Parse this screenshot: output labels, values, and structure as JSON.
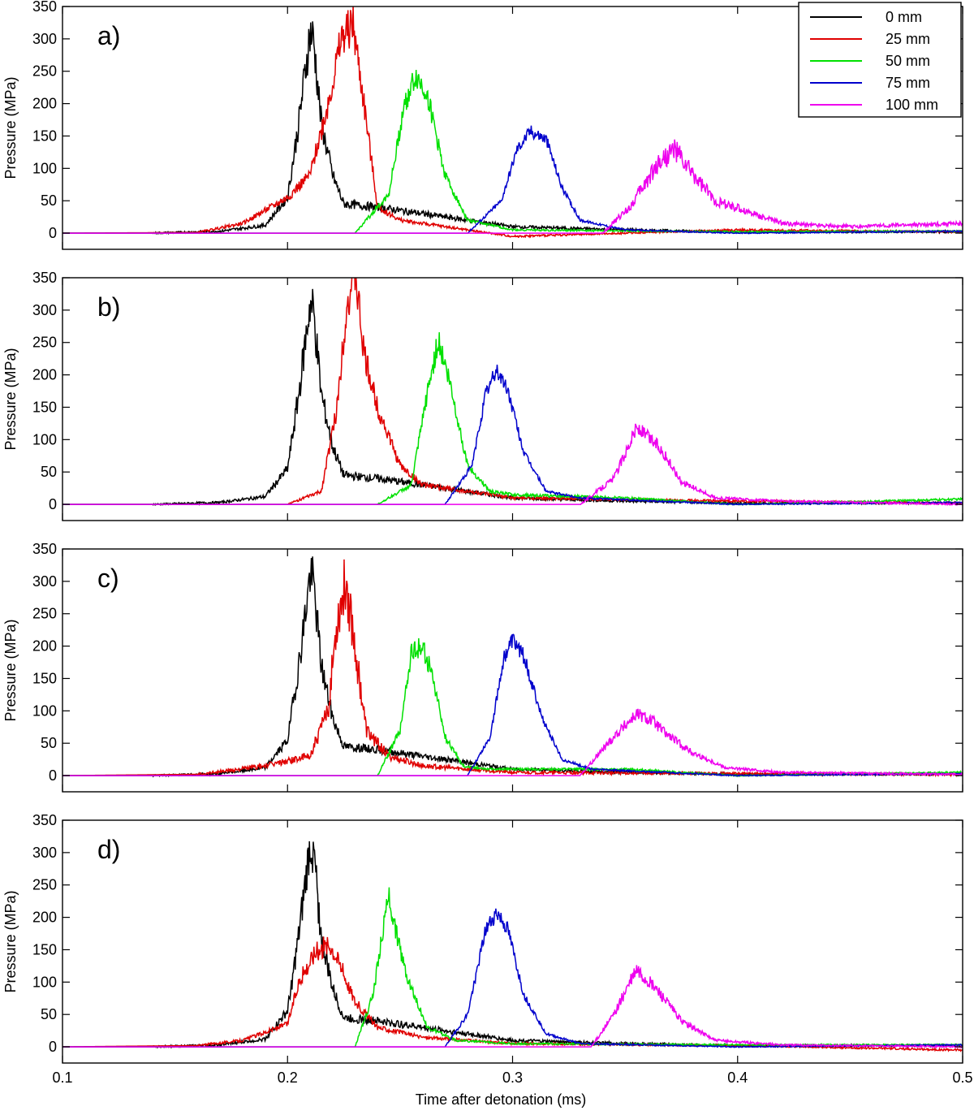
{
  "figure": {
    "xlabel": "Time after detonation (ms)",
    "ylabel": "Pressure (MPa)"
  },
  "legend": {
    "entries": [
      {
        "label": "0 mm",
        "color": "#000000"
      },
      {
        "label": "25 mm",
        "color": "#e00000"
      },
      {
        "label": "50 mm",
        "color": "#00e000"
      },
      {
        "label": "75 mm",
        "color": "#0000cc"
      },
      {
        "label": "100 mm",
        "color": "#ee00ee"
      }
    ]
  },
  "chart_data": [
    {
      "type": "line",
      "panel": "a)",
      "xlabel": "",
      "ylabel": "Pressure (MPa)",
      "xlim": [
        0.1,
        0.5
      ],
      "ylim": [
        -25,
        350
      ],
      "xticks": [
        "0.1",
        "0.2",
        "0.3",
        "0.4",
        "0.5"
      ],
      "yticks": [
        "0",
        "50",
        "100",
        "150",
        "200",
        "250",
        "300",
        "350"
      ],
      "series": [
        {
          "name": "0 mm",
          "color": "#000000",
          "noise": [
            1.4,
            12
          ],
          "x": [
            0.1,
            0.14,
            0.17,
            0.19,
            0.2,
            0.205,
            0.21,
            0.2115,
            0.215,
            0.22,
            0.225,
            0.24,
            0.27,
            0.3,
            0.35,
            0.4,
            0.5
          ],
          "y": [
            0,
            0,
            3,
            12,
            55,
            170,
            310,
            300,
            170,
            90,
            45,
            40,
            25,
            10,
            5,
            2,
            2
          ]
        },
        {
          "name": "25 mm",
          "color": "#e00000",
          "noise": [
            1.2,
            10
          ],
          "x": [
            0.1,
            0.16,
            0.18,
            0.2,
            0.21,
            0.218,
            0.224,
            0.229,
            0.234,
            0.24,
            0.25,
            0.27,
            0.3,
            0.4,
            0.5
          ],
          "y": [
            0,
            1,
            15,
            55,
            90,
            200,
            300,
            325,
            200,
            40,
            20,
            10,
            -5,
            5,
            2
          ]
        },
        {
          "name": "50 mm",
          "color": "#00e000",
          "noise": [
            1.0,
            8
          ],
          "x": [
            0.1,
            0.23,
            0.245,
            0.252,
            0.257,
            0.262,
            0.27,
            0.28,
            0.3,
            0.4,
            0.5
          ],
          "y": [
            0,
            0,
            60,
            200,
            242,
            215,
            90,
            20,
            5,
            2,
            3
          ]
        },
        {
          "name": "75 mm",
          "color": "#0000cc",
          "noise": [
            0.9,
            6
          ],
          "x": [
            0.1,
            0.28,
            0.295,
            0.302,
            0.308,
            0.315,
            0.322,
            0.33,
            0.35,
            0.4,
            0.5
          ],
          "y": [
            0,
            0,
            50,
            130,
            158,
            145,
            70,
            20,
            5,
            0,
            3
          ]
        },
        {
          "name": "100 mm",
          "color": "#ee00ee",
          "noise": [
            1.4,
            14
          ],
          "x": [
            0.1,
            0.34,
            0.352,
            0.365,
            0.372,
            0.378,
            0.39,
            0.42,
            0.45,
            0.5
          ],
          "y": [
            0,
            0,
            40,
            110,
            130,
            100,
            50,
            15,
            10,
            15
          ]
        }
      ]
    },
    {
      "type": "line",
      "panel": "b)",
      "xlabel": "",
      "ylabel": "Pressure (MPa)",
      "xlim": [
        0.1,
        0.5
      ],
      "ylim": [
        -25,
        350
      ],
      "xticks": [
        "0.1",
        "0.2",
        "0.3",
        "0.4",
        "0.5"
      ],
      "yticks": [
        "0",
        "50",
        "100",
        "150",
        "200",
        "250",
        "300",
        "350"
      ],
      "series": [
        {
          "name": "0 mm",
          "color": "#000000",
          "noise": [
            1.4,
            12
          ],
          "x": [
            0.1,
            0.14,
            0.17,
            0.19,
            0.2,
            0.205,
            0.21,
            0.2115,
            0.215,
            0.22,
            0.225,
            0.24,
            0.27,
            0.3,
            0.35,
            0.4,
            0.5
          ],
          "y": [
            0,
            0,
            3,
            12,
            55,
            170,
            310,
            300,
            170,
            90,
            45,
            40,
            25,
            10,
            5,
            2,
            2
          ]
        },
        {
          "name": "25 mm",
          "color": "#e00000",
          "noise": [
            1.2,
            10
          ],
          "x": [
            0.1,
            0.2,
            0.215,
            0.222,
            0.226,
            0.23,
            0.234,
            0.24,
            0.25,
            0.26,
            0.3,
            0.4,
            0.5
          ],
          "y": [
            0,
            0,
            20,
            150,
            300,
            360,
            230,
            150,
            60,
            30,
            10,
            5,
            2
          ]
        },
        {
          "name": "50 mm",
          "color": "#00e000",
          "noise": [
            1.0,
            8
          ],
          "x": [
            0.1,
            0.24,
            0.255,
            0.262,
            0.267,
            0.272,
            0.28,
            0.29,
            0.3,
            0.35,
            0.4,
            0.5
          ],
          "y": [
            0,
            0,
            30,
            170,
            255,
            190,
            60,
            20,
            15,
            10,
            0,
            8
          ]
        },
        {
          "name": "75 mm",
          "color": "#0000cc",
          "noise": [
            0.9,
            6
          ],
          "x": [
            0.1,
            0.27,
            0.282,
            0.288,
            0.293,
            0.298,
            0.305,
            0.315,
            0.33,
            0.4,
            0.5
          ],
          "y": [
            0,
            0,
            60,
            170,
            208,
            175,
            80,
            20,
            10,
            0,
            3
          ]
        },
        {
          "name": "100 mm",
          "color": "#ee00ee",
          "noise": [
            1.2,
            10
          ],
          "x": [
            0.1,
            0.33,
            0.345,
            0.355,
            0.365,
            0.375,
            0.39,
            0.42,
            0.5
          ],
          "y": [
            0,
            0,
            40,
            118,
            90,
            35,
            10,
            5,
            0
          ]
        }
      ]
    },
    {
      "type": "line",
      "panel": "c)",
      "xlabel": "",
      "ylabel": "Pressure (MPa)",
      "xlim": [
        0.1,
        0.5
      ],
      "ylim": [
        -25,
        350
      ],
      "xticks": [
        "0.1",
        "0.2",
        "0.3",
        "0.4",
        "0.5"
      ],
      "yticks": [
        "0",
        "50",
        "100",
        "150",
        "200",
        "250",
        "300",
        "350"
      ],
      "series": [
        {
          "name": "0 mm",
          "color": "#000000",
          "noise": [
            1.4,
            12
          ],
          "x": [
            0.1,
            0.14,
            0.17,
            0.19,
            0.2,
            0.205,
            0.21,
            0.2115,
            0.215,
            0.22,
            0.225,
            0.24,
            0.27,
            0.3,
            0.35,
            0.4,
            0.5
          ],
          "y": [
            0,
            0,
            3,
            12,
            55,
            170,
            310,
            300,
            170,
            90,
            45,
            40,
            25,
            10,
            5,
            2,
            2
          ]
        },
        {
          "name": "25 mm",
          "color": "#e00000",
          "noise": [
            1.6,
            16
          ],
          "x": [
            0.1,
            0.16,
            0.19,
            0.21,
            0.218,
            0.222,
            0.226,
            0.23,
            0.235,
            0.245,
            0.26,
            0.3,
            0.4,
            0.5
          ],
          "y": [
            0,
            2,
            15,
            30,
            100,
            240,
            303,
            200,
            70,
            30,
            15,
            5,
            3,
            2
          ]
        },
        {
          "name": "50 mm",
          "color": "#00e000",
          "noise": [
            1.0,
            8
          ],
          "x": [
            0.1,
            0.24,
            0.25,
            0.255,
            0.26,
            0.264,
            0.27,
            0.278,
            0.29,
            0.35,
            0.4,
            0.5
          ],
          "y": [
            0,
            0,
            70,
            190,
            200,
            160,
            60,
            15,
            10,
            10,
            0,
            5
          ]
        },
        {
          "name": "75 mm",
          "color": "#0000cc",
          "noise": [
            0.9,
            6
          ],
          "x": [
            0.1,
            0.28,
            0.29,
            0.296,
            0.3,
            0.305,
            0.313,
            0.322,
            0.335,
            0.4,
            0.5
          ],
          "y": [
            0,
            0,
            60,
            180,
            209,
            185,
            90,
            25,
            10,
            0,
            3
          ]
        },
        {
          "name": "100 mm",
          "color": "#ee00ee",
          "noise": [
            1.2,
            10
          ],
          "x": [
            0.1,
            0.33,
            0.345,
            0.355,
            0.362,
            0.368,
            0.38,
            0.395,
            0.42,
            0.5
          ],
          "y": [
            0,
            0,
            60,
            95,
            85,
            65,
            35,
            12,
            5,
            2
          ]
        }
      ]
    },
    {
      "type": "line",
      "panel": "d)",
      "xlabel": "Time after detonation (ms)",
      "ylabel": "Pressure (MPa)",
      "xlim": [
        0.1,
        0.5
      ],
      "ylim": [
        -25,
        350
      ],
      "xticks": [
        "0.1",
        "0.2",
        "0.3",
        "0.4",
        "0.5"
      ],
      "yticks": [
        "0",
        "50",
        "100",
        "150",
        "200",
        "250",
        "300",
        "350"
      ],
      "series": [
        {
          "name": "0 mm",
          "color": "#000000",
          "noise": [
            1.4,
            12
          ],
          "x": [
            0.1,
            0.14,
            0.17,
            0.19,
            0.2,
            0.205,
            0.21,
            0.2115,
            0.215,
            0.22,
            0.225,
            0.24,
            0.27,
            0.3,
            0.35,
            0.4,
            0.5
          ],
          "y": [
            0,
            0,
            3,
            12,
            55,
            170,
            310,
            300,
            170,
            90,
            45,
            40,
            25,
            10,
            5,
            2,
            2
          ]
        },
        {
          "name": "25 mm",
          "color": "#e00000",
          "noise": [
            1.2,
            10
          ],
          "x": [
            0.1,
            0.16,
            0.18,
            0.2,
            0.205,
            0.212,
            0.219,
            0.223,
            0.23,
            0.24,
            0.26,
            0.3,
            0.4,
            0.5
          ],
          "y": [
            0,
            2,
            10,
            35,
            100,
            145,
            160,
            130,
            70,
            30,
            15,
            5,
            2,
            -5
          ]
        },
        {
          "name": "50 mm",
          "color": "#00e000",
          "noise": [
            1.0,
            8
          ],
          "x": [
            0.1,
            0.23,
            0.238,
            0.242,
            0.245,
            0.248,
            0.253,
            0.262,
            0.275,
            0.3,
            0.4,
            0.5
          ],
          "y": [
            0,
            0,
            80,
            170,
            237,
            180,
            110,
            30,
            10,
            5,
            3,
            3
          ]
        },
        {
          "name": "75 mm",
          "color": "#0000cc",
          "noise": [
            0.9,
            6
          ],
          "x": [
            0.1,
            0.27,
            0.28,
            0.288,
            0.293,
            0.298,
            0.305,
            0.315,
            0.33,
            0.4,
            0.5
          ],
          "y": [
            0,
            0,
            50,
            180,
            208,
            180,
            80,
            20,
            5,
            0,
            3
          ]
        },
        {
          "name": "100 mm",
          "color": "#ee00ee",
          "noise": [
            1.2,
            10
          ],
          "x": [
            0.1,
            0.335,
            0.345,
            0.355,
            0.365,
            0.375,
            0.39,
            0.42,
            0.5
          ],
          "y": [
            0,
            0,
            50,
            118,
            85,
            40,
            10,
            3,
            0
          ]
        }
      ]
    }
  ]
}
